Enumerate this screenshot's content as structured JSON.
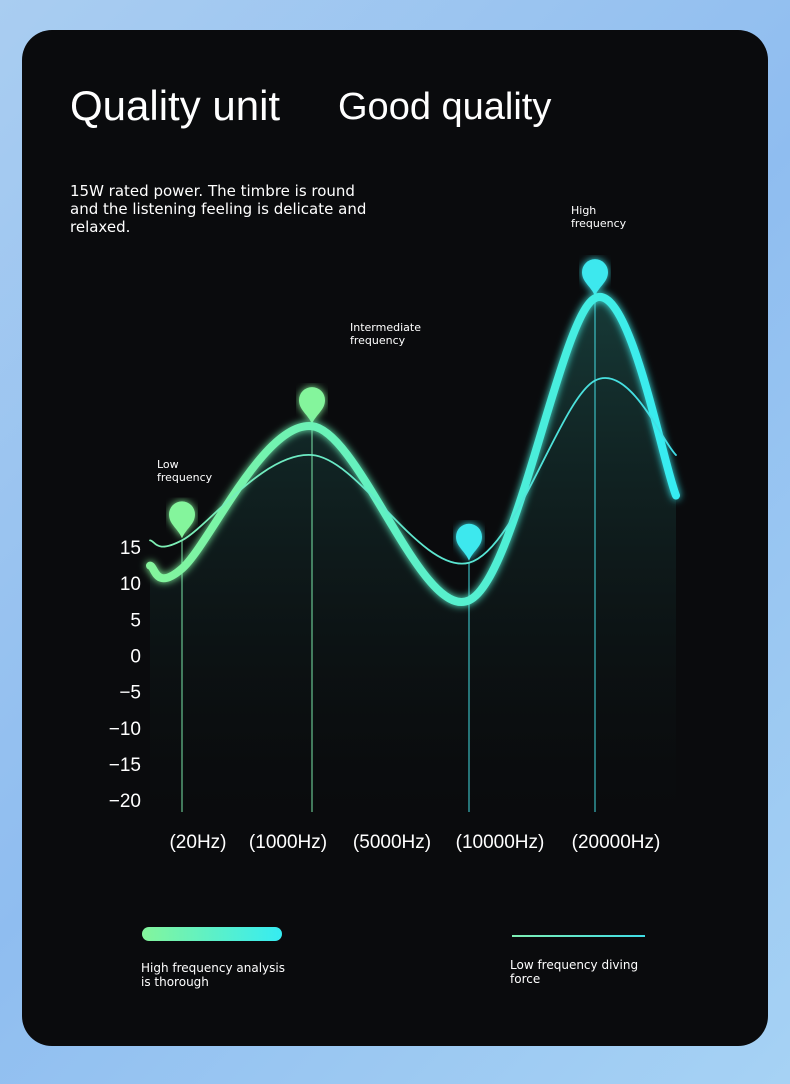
{
  "chart_data": {
    "type": "line",
    "title": "Quality unit",
    "subtitle": "Good quality",
    "description": "15W rated power. The timbre is round and the listening feeling is delicate and relaxed.",
    "annotations": [
      "Low frequency",
      "Intermediate frequency",
      "High frequency"
    ],
    "x_labels": [
      "(20Hz)",
      "(1000Hz)",
      "(5000Hz)",
      "(10000Hz)",
      "(20000Hz)"
    ],
    "ylim": [
      -22,
      53
    ],
    "yticks": [
      15,
      10,
      5,
      0,
      {
        "value": -5,
        "label": "−5"
      },
      {
        "value": -10,
        "label": "−10"
      },
      {
        "value": -15,
        "label": "−15"
      },
      {
        "value": -20,
        "label": "−20"
      }
    ],
    "series": [
      {
        "name": "High frequency analysis is thorough",
        "color": "#84f59c",
        "color2": "#36ecf2",
        "values": [
          12.7,
          12.3,
          32,
          7.9,
          49.7,
          22.4
        ]
      },
      {
        "name": "Low frequency diving force",
        "color": "#7ff0b4",
        "color2": "#3fdde6",
        "values": [
          16.2,
          16.2,
          28,
          13.1,
          38.3,
          28
        ]
      }
    ]
  }
}
